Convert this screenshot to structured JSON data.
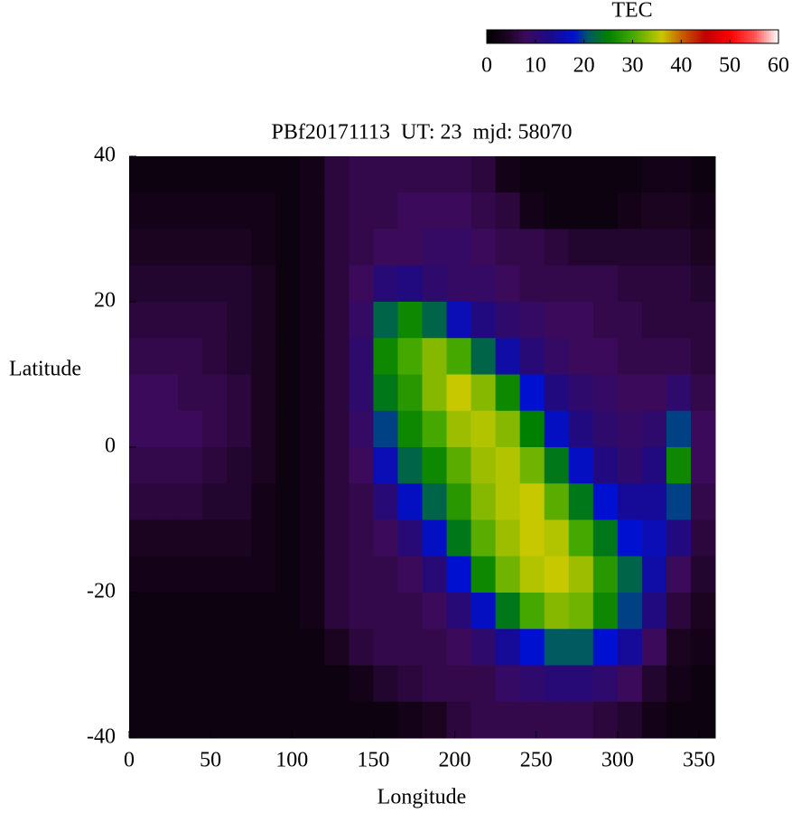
{
  "chart_data": {
    "type": "heatmap",
    "title": "PBf20171113  UT: 23  mjd: 58070",
    "x_label": "Longitude",
    "y_label": "Latitude",
    "xlim": [
      0,
      360
    ],
    "ylim": [
      -40,
      40
    ],
    "xticks": [
      0,
      50,
      100,
      150,
      200,
      250,
      300,
      350
    ],
    "yticks": [
      -40,
      -20,
      0,
      20,
      40
    ],
    "x": [
      7.5,
      22.5,
      37.5,
      52.5,
      67.5,
      82.5,
      97.5,
      112.5,
      127.5,
      142.5,
      157.5,
      172.5,
      187.5,
      202.5,
      217.5,
      232.5,
      247.5,
      262.5,
      277.5,
      292.5,
      307.5,
      322.5,
      337.5,
      352.5
    ],
    "y": [
      37.5,
      32.5,
      27.5,
      22.5,
      17.5,
      12.5,
      7.5,
      2.5,
      -2.5,
      -7.5,
      -12.5,
      -17.5,
      -22.5,
      -27.5,
      -32.5,
      -37.5
    ],
    "values": [
      [
        2,
        2,
        2,
        2,
        2,
        2,
        2,
        3,
        6,
        7,
        7,
        7,
        7,
        7,
        6,
        3,
        2,
        2,
        2,
        2,
        2,
        3,
        3,
        2
      ],
      [
        3,
        3,
        3,
        3,
        3,
        3,
        2,
        3,
        6,
        7,
        7,
        8,
        8,
        8,
        7,
        6,
        3,
        2,
        2,
        2,
        3,
        4,
        4,
        3
      ],
      [
        4,
        4,
        4,
        4,
        4,
        3,
        2,
        3,
        6,
        7,
        8,
        8,
        9,
        9,
        8,
        7,
        7,
        6,
        5,
        5,
        5,
        5,
        5,
        4
      ],
      [
        5,
        5,
        5,
        5,
        5,
        4,
        2,
        3,
        6,
        8,
        11,
        12,
        10,
        9,
        9,
        8,
        7,
        7,
        7,
        7,
        6,
        6,
        6,
        5
      ],
      [
        6,
        6,
        6,
        6,
        5,
        4,
        2,
        3,
        6,
        9,
        22,
        26,
        22,
        16,
        12,
        10,
        9,
        8,
        8,
        7,
        7,
        6,
        6,
        6
      ],
      [
        7,
        7,
        7,
        6,
        5,
        4,
        2,
        3,
        6,
        10,
        26,
        30,
        33,
        30,
        22,
        15,
        11,
        9,
        8,
        8,
        7,
        7,
        7,
        6
      ],
      [
        8,
        8,
        7,
        7,
        6,
        4,
        2,
        3,
        6,
        10,
        24,
        28,
        33,
        36,
        33,
        26,
        18,
        12,
        10,
        9,
        8,
        8,
        10,
        7
      ],
      [
        8,
        8,
        8,
        7,
        6,
        4,
        2,
        3,
        6,
        9,
        20,
        26,
        30,
        34,
        35,
        33,
        25,
        17,
        12,
        10,
        9,
        10,
        20,
        8
      ],
      [
        7,
        7,
        7,
        6,
        5,
        4,
        2,
        3,
        6,
        8,
        16,
        22,
        26,
        31,
        34,
        35,
        32,
        24,
        17,
        12,
        10,
        12,
        26,
        8
      ],
      [
        6,
        6,
        6,
        5,
        5,
        3,
        2,
        3,
        6,
        7,
        11,
        17,
        22,
        28,
        33,
        35,
        36,
        31,
        24,
        18,
        14,
        14,
        20,
        7
      ],
      [
        4,
        4,
        4,
        4,
        4,
        3,
        2,
        3,
        6,
        7,
        8,
        11,
        17,
        24,
        31,
        34,
        36,
        35,
        30,
        24,
        18,
        16,
        12,
        6
      ],
      [
        3,
        3,
        3,
        3,
        3,
        3,
        2,
        3,
        6,
        7,
        7,
        8,
        11,
        18,
        26,
        32,
        35,
        36,
        34,
        28,
        22,
        15,
        8,
        5
      ],
      [
        2,
        2,
        2,
        2,
        2,
        2,
        2,
        3,
        6,
        7,
        7,
        7,
        8,
        11,
        17,
        24,
        30,
        33,
        32,
        26,
        20,
        12,
        6,
        4
      ],
      [
        2,
        2,
        2,
        2,
        2,
        2,
        2,
        2,
        4,
        6,
        7,
        7,
        7,
        8,
        10,
        14,
        18,
        21,
        21,
        18,
        14,
        8,
        4,
        3
      ],
      [
        2,
        2,
        2,
        2,
        2,
        2,
        2,
        2,
        2,
        3,
        5,
        6,
        7,
        7,
        7,
        9,
        10,
        11,
        11,
        10,
        8,
        5,
        3,
        2
      ],
      [
        2,
        2,
        2,
        2,
        2,
        2,
        2,
        2,
        2,
        2,
        2,
        3,
        4,
        6,
        7,
        7,
        7,
        7,
        7,
        6,
        5,
        3,
        2,
        2
      ]
    ],
    "colorbar": {
      "label": "TEC",
      "lim": [
        0,
        60
      ],
      "ticks": [
        0,
        10,
        20,
        30,
        40,
        50,
        60
      ],
      "colorscale": [
        [
          0,
          "#000000"
        ],
        [
          4,
          "#1a0420"
        ],
        [
          8,
          "#3c0a5a"
        ],
        [
          13,
          "#1a0a8a"
        ],
        [
          18,
          "#0010d0"
        ],
        [
          21,
          "#005a60"
        ],
        [
          25,
          "#008000"
        ],
        [
          30,
          "#44a800"
        ],
        [
          36,
          "#c8c800"
        ],
        [
          40,
          "#c86000"
        ],
        [
          45,
          "#c00000"
        ],
        [
          50,
          "#ff0000"
        ],
        [
          55,
          "#ff5050"
        ],
        [
          60,
          "#ffffff"
        ]
      ]
    }
  }
}
